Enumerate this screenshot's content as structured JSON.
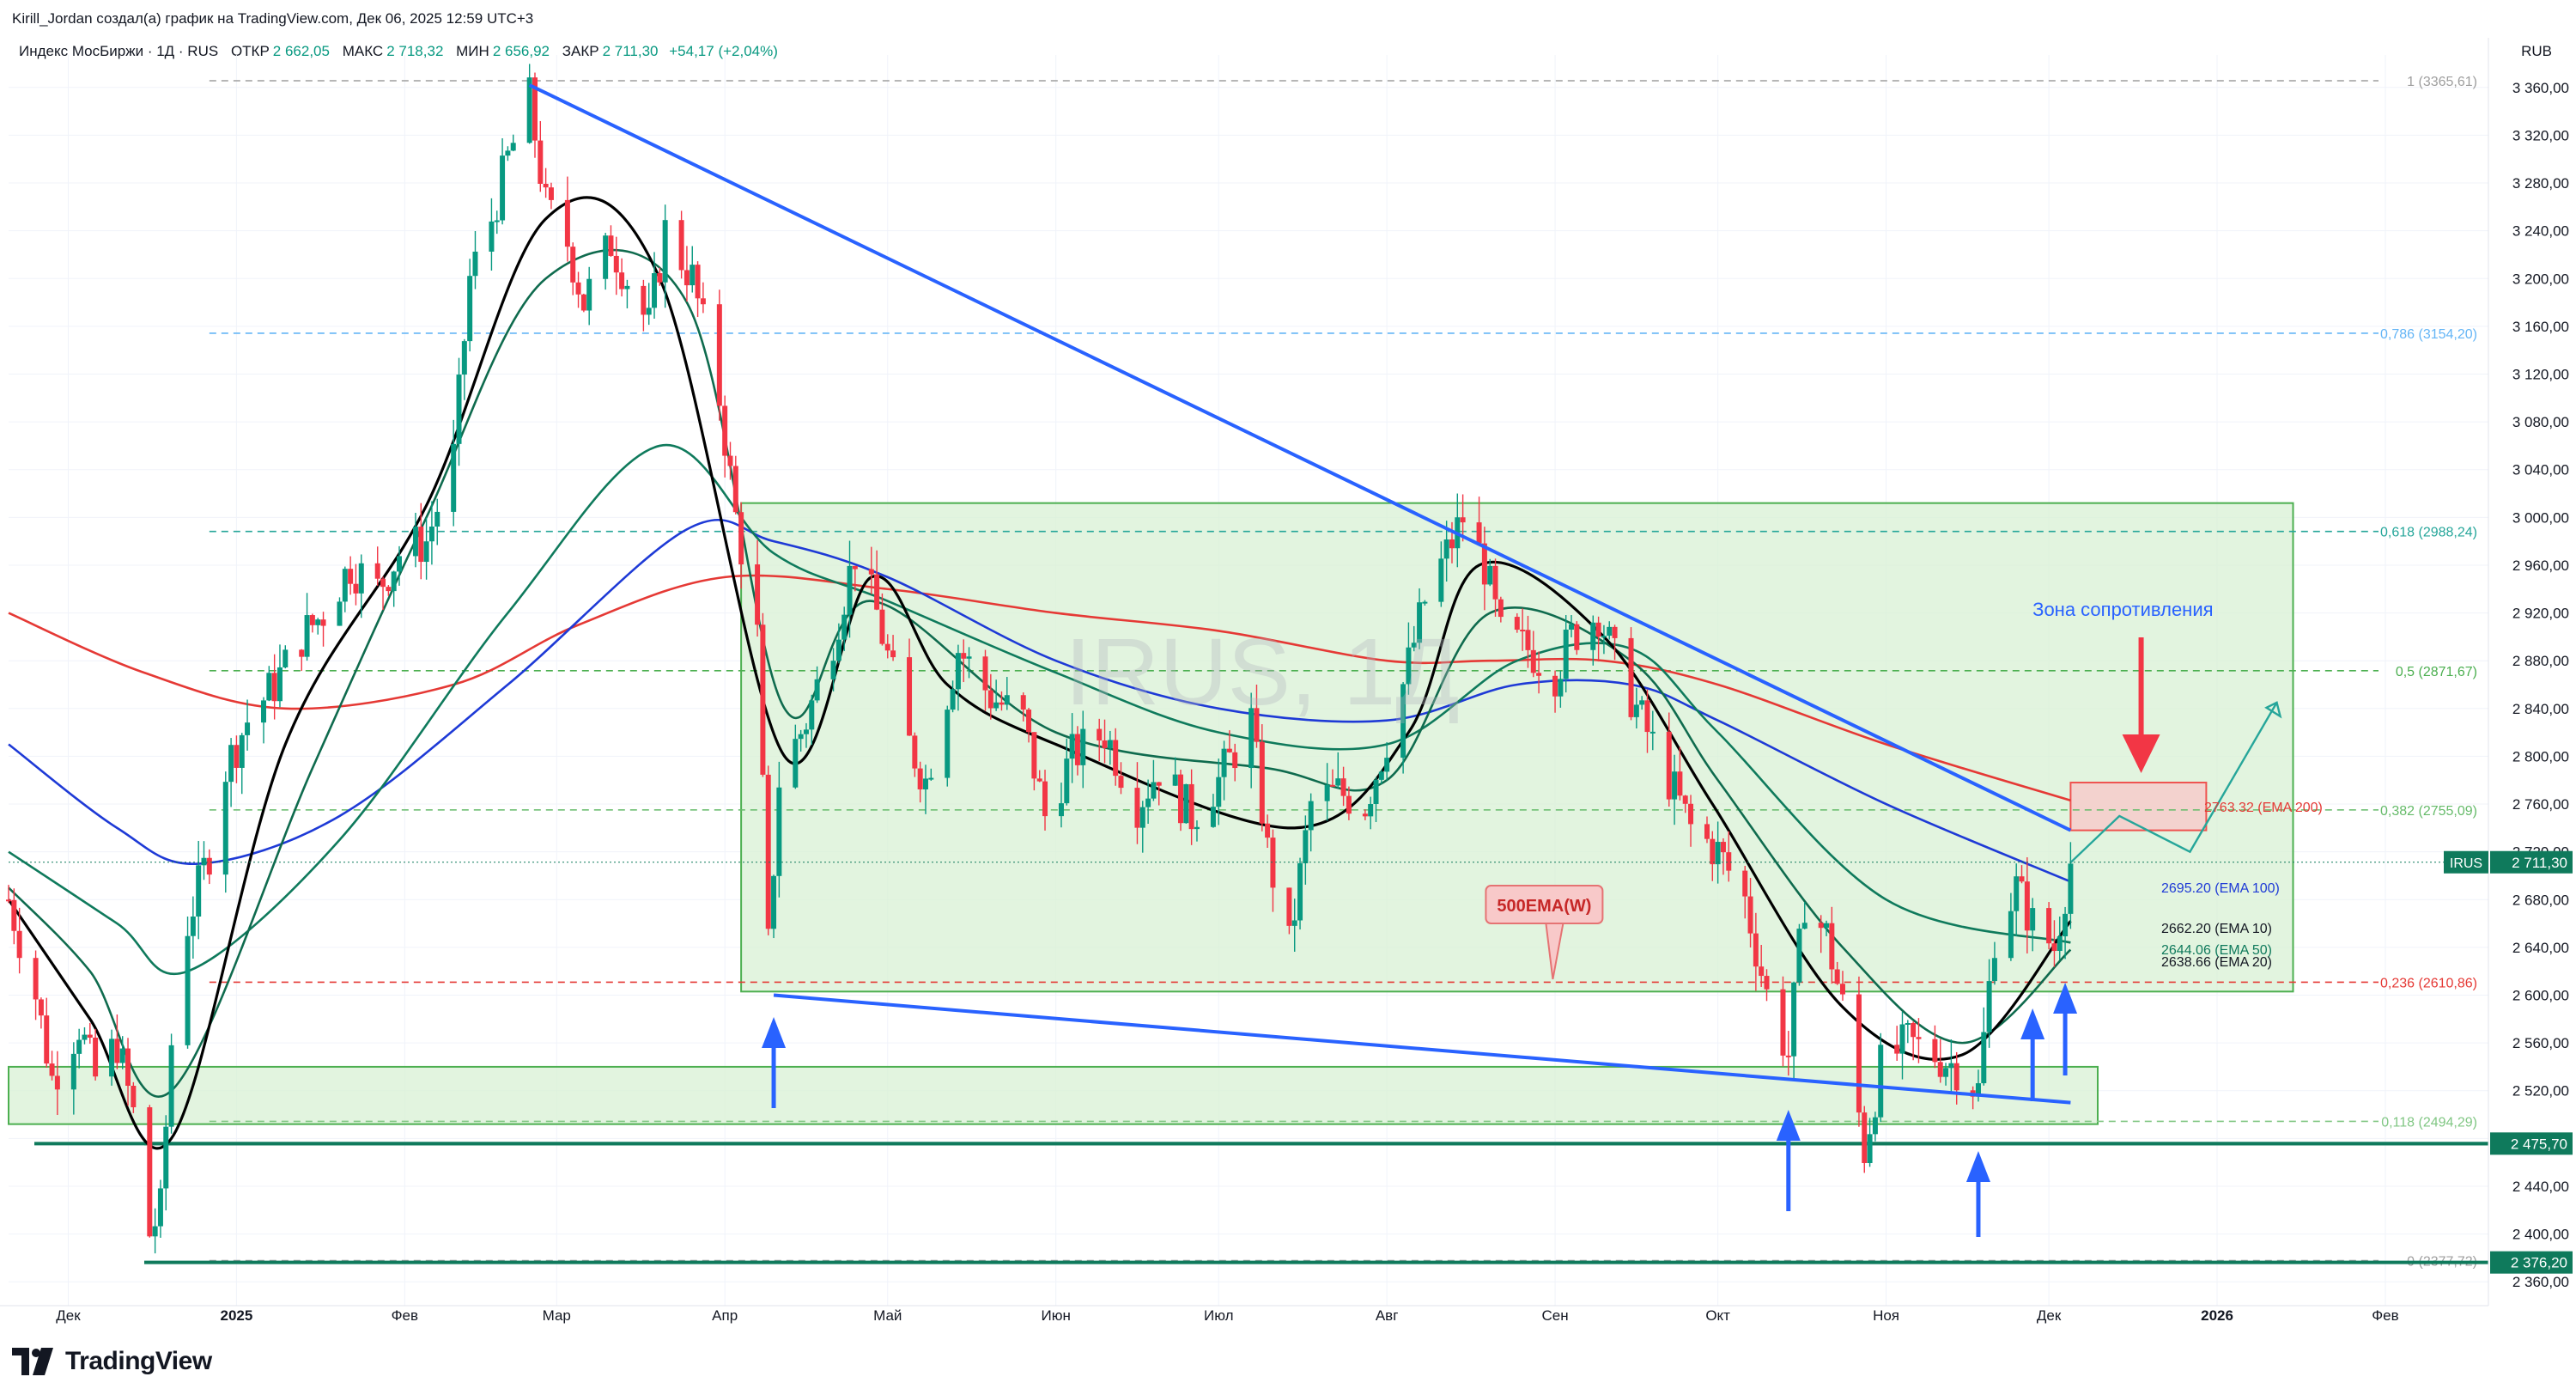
{
  "header": {
    "author_line": "Kirill_Jordan создал(а) график на TradingView.com, Дек 06, 2025 12:59 UTC+3",
    "symbol": "Индекс МосБиржи · 1Д · RUS",
    "open_label": "ОТКР",
    "open": "2 662,05",
    "high_label": "МАКС",
    "high": "2 718,32",
    "low_label": "МИН",
    "low": "2 656,92",
    "close_label": "ЗАКР",
    "close": "2 711,30",
    "change": "+54,17 (+2,04%)",
    "currency": "RUB"
  },
  "watermark": "IRUS, 1Д",
  "brand": "TradingView",
  "colors": {
    "up": "#089981",
    "down": "#f23645",
    "ema200": "#e53935",
    "ema100": "#1e3ad6",
    "ema50": "#0f7a5c",
    "ema20": "#0f6b4e",
    "ema10": "#000000",
    "trendline": "#2962ff",
    "zone_fill": "#d8f0d4",
    "zone_border": "#4caf50"
  },
  "chart_data": {
    "type": "candlestick",
    "symbol": "IRUS",
    "timeframe": "1Д",
    "y_range": [
      2340,
      3380
    ],
    "x_range": [
      "2024-11-20",
      "2026-02-20"
    ],
    "y_ticks": [
      "3 360,00",
      "3 320,00",
      "3 280,00",
      "3 240,00",
      "3 200,00",
      "3 160,00",
      "3 120,00",
      "3 080,00",
      "3 040,00",
      "3 000,00",
      "2 960,00",
      "2 920,00",
      "2 880,00",
      "2 840,00",
      "2 800,00",
      "2 760,00",
      "2 720,00",
      "2 680,00",
      "2 640,00",
      "2 600,00",
      "2 560,00",
      "2 520,00",
      "2 480,00",
      "2 440,00",
      "2 400,00",
      "2 360,00"
    ],
    "x_ticks": [
      {
        "date": "2024-12-01",
        "label": "Дек"
      },
      {
        "date": "2025-01-01",
        "label": "2025"
      },
      {
        "date": "2025-02-01",
        "label": "Фев"
      },
      {
        "date": "2025-03-01",
        "label": "Мар"
      },
      {
        "date": "2025-04-01",
        "label": "Апр"
      },
      {
        "date": "2025-05-01",
        "label": "Май"
      },
      {
        "date": "2025-06-01",
        "label": "Июн"
      },
      {
        "date": "2025-07-01",
        "label": "Июл"
      },
      {
        "date": "2025-08-01",
        "label": "Авг"
      },
      {
        "date": "2025-09-01",
        "label": "Сен"
      },
      {
        "date": "2025-10-01",
        "label": "Окт"
      },
      {
        "date": "2025-11-01",
        "label": "Ноя"
      },
      {
        "date": "2025-12-01",
        "label": "Дек"
      },
      {
        "date": "2026-01-01",
        "label": "2026"
      },
      {
        "date": "2026-02-01",
        "label": "Фев"
      }
    ],
    "price_path": [
      [
        "2024-11-20",
        2680
      ],
      [
        "2024-11-25",
        2600
      ],
      [
        "2024-11-28",
        2530
      ],
      [
        "2024-12-03",
        2575
      ],
      [
        "2024-12-06",
        2530
      ],
      [
        "2024-12-10",
        2560
      ],
      [
        "2024-12-13",
        2500
      ],
      [
        "2024-12-16",
        2400
      ],
      [
        "2024-12-18",
        2420
      ],
      [
        "2024-12-20",
        2560
      ],
      [
        "2024-12-23",
        2660
      ],
      [
        "2024-12-27",
        2720
      ],
      [
        "2024-12-30",
        2790
      ],
      [
        "2025-01-03",
        2830
      ],
      [
        "2025-01-08",
        2860
      ],
      [
        "2025-01-13",
        2900
      ],
      [
        "2025-01-17",
        2920
      ],
      [
        "2025-01-22",
        2960
      ],
      [
        "2025-01-27",
        2940
      ],
      [
        "2025-01-31",
        2970
      ],
      [
        "2025-02-05",
        2980
      ],
      [
        "2025-02-10",
        3050
      ],
      [
        "2025-02-13",
        3200
      ],
      [
        "2025-02-17",
        3250
      ],
      [
        "2025-02-20",
        3300
      ],
      [
        "2025-02-24",
        3350
      ],
      [
        "2025-02-27",
        3260
      ],
      [
        "2025-03-03",
        3230
      ],
      [
        "2025-03-06",
        3180
      ],
      [
        "2025-03-11",
        3230
      ],
      [
        "2025-03-14",
        3200
      ],
      [
        "2025-03-18",
        3160
      ],
      [
        "2025-03-21",
        3240
      ],
      [
        "2025-03-26",
        3200
      ],
      [
        "2025-03-31",
        3100
      ],
      [
        "2025-04-03",
        3000
      ],
      [
        "2025-04-07",
        2900
      ],
      [
        "2025-04-09",
        2640
      ],
      [
        "2025-04-11",
        2780
      ],
      [
        "2025-04-16",
        2830
      ],
      [
        "2025-04-21",
        2900
      ],
      [
        "2025-04-25",
        2970
      ],
      [
        "2025-04-29",
        2920
      ],
      [
        "2025-05-05",
        2810
      ],
      [
        "2025-05-08",
        2780
      ],
      [
        "2025-05-14",
        2890
      ],
      [
        "2025-05-20",
        2850
      ],
      [
        "2025-05-26",
        2830
      ],
      [
        "2025-05-30",
        2750
      ],
      [
        "2025-06-04",
        2800
      ],
      [
        "2025-06-10",
        2820
      ],
      [
        "2025-06-16",
        2760
      ],
      [
        "2025-06-20",
        2790
      ],
      [
        "2025-06-26",
        2750
      ],
      [
        "2025-07-01",
        2780
      ],
      [
        "2025-07-07",
        2830
      ],
      [
        "2025-07-10",
        2720
      ],
      [
        "2025-07-14",
        2640
      ],
      [
        "2025-07-18",
        2760
      ],
      [
        "2025-07-23",
        2770
      ],
      [
        "2025-07-28",
        2760
      ],
      [
        "2025-07-31",
        2800
      ],
      [
        "2025-08-04",
        2860
      ],
      [
        "2025-08-08",
        2930
      ],
      [
        "2025-08-12",
        2970
      ],
      [
        "2025-08-15",
        3000
      ],
      [
        "2025-08-19",
        2960
      ],
      [
        "2025-08-22",
        2900
      ],
      [
        "2025-08-27",
        2890
      ],
      [
        "2025-09-01",
        2870
      ],
      [
        "2025-09-04",
        2900
      ],
      [
        "2025-09-09",
        2920
      ],
      [
        "2025-09-12",
        2880
      ],
      [
        "2025-09-17",
        2830
      ],
      [
        "2025-09-22",
        2780
      ],
      [
        "2025-09-26",
        2740
      ],
      [
        "2025-10-01",
        2720
      ],
      [
        "2025-10-06",
        2680
      ],
      [
        "2025-10-10",
        2600
      ],
      [
        "2025-10-14",
        2550
      ],
      [
        "2025-10-17",
        2680
      ],
      [
        "2025-10-21",
        2650
      ],
      [
        "2025-10-24",
        2590
      ],
      [
        "2025-10-28",
        2470
      ],
      [
        "2025-10-31",
        2540
      ],
      [
        "2025-11-05",
        2560
      ],
      [
        "2025-11-10",
        2550
      ],
      [
        "2025-11-14",
        2540
      ],
      [
        "2025-11-18",
        2520
      ],
      [
        "2025-11-21",
        2650
      ],
      [
        "2025-11-25",
        2690
      ],
      [
        "2025-11-28",
        2660
      ],
      [
        "2025-12-02",
        2640
      ],
      [
        "2025-12-05",
        2711
      ]
    ],
    "series": [
      {
        "name": "EMA 200",
        "points": [
          [
            "2024-11-20",
            2920
          ],
          [
            "2024-12-15",
            2870
          ],
          [
            "2025-01-10",
            2840
          ],
          [
            "2025-02-10",
            2860
          ],
          [
            "2025-03-05",
            2910
          ],
          [
            "2025-04-01",
            2950
          ],
          [
            "2025-05-01",
            2940
          ],
          [
            "2025-06-01",
            2920
          ],
          [
            "2025-07-01",
            2905
          ],
          [
            "2025-08-01",
            2880
          ],
          [
            "2025-08-20",
            2880
          ],
          [
            "2025-09-10",
            2880
          ],
          [
            "2025-10-01",
            2860
          ],
          [
            "2025-11-01",
            2810
          ],
          [
            "2025-12-05",
            2763
          ]
        ]
      },
      {
        "name": "EMA 100",
        "points": [
          [
            "2024-11-20",
            2810
          ],
          [
            "2024-12-10",
            2740
          ],
          [
            "2024-12-25",
            2710
          ],
          [
            "2025-01-20",
            2750
          ],
          [
            "2025-02-20",
            2860
          ],
          [
            "2025-03-25",
            2990
          ],
          [
            "2025-04-10",
            2980
          ],
          [
            "2025-05-01",
            2950
          ],
          [
            "2025-06-01",
            2880
          ],
          [
            "2025-07-01",
            2840
          ],
          [
            "2025-08-01",
            2830
          ],
          [
            "2025-08-25",
            2860
          ],
          [
            "2025-09-15",
            2860
          ],
          [
            "2025-10-01",
            2830
          ],
          [
            "2025-11-01",
            2760
          ],
          [
            "2025-12-05",
            2695
          ]
        ]
      },
      {
        "name": "EMA 50",
        "points": [
          [
            "2024-11-20",
            2720
          ],
          [
            "2024-12-10",
            2660
          ],
          [
            "2024-12-23",
            2620
          ],
          [
            "2025-01-20",
            2730
          ],
          [
            "2025-02-20",
            2920
          ],
          [
            "2025-03-20",
            3060
          ],
          [
            "2025-04-10",
            2970
          ],
          [
            "2025-05-01",
            2930
          ],
          [
            "2025-06-01",
            2870
          ],
          [
            "2025-07-01",
            2820
          ],
          [
            "2025-08-01",
            2810
          ],
          [
            "2025-08-25",
            2880
          ],
          [
            "2025-09-15",
            2890
          ],
          [
            "2025-10-01",
            2820
          ],
          [
            "2025-11-01",
            2680
          ],
          [
            "2025-12-05",
            2644
          ]
        ]
      },
      {
        "name": "EMA 20",
        "points": [
          [
            "2024-11-20",
            2690
          ],
          [
            "2024-12-05",
            2620
          ],
          [
            "2024-12-20",
            2520
          ],
          [
            "2025-01-15",
            2790
          ],
          [
            "2025-02-05",
            3000
          ],
          [
            "2025-02-27",
            3200
          ],
          [
            "2025-03-25",
            3180
          ],
          [
            "2025-04-12",
            2840
          ],
          [
            "2025-04-28",
            2930
          ],
          [
            "2025-06-01",
            2820
          ],
          [
            "2025-07-10",
            2790
          ],
          [
            "2025-08-01",
            2780
          ],
          [
            "2025-08-20",
            2920
          ],
          [
            "2025-09-15",
            2880
          ],
          [
            "2025-10-01",
            2780
          ],
          [
            "2025-10-24",
            2640
          ],
          [
            "2025-11-15",
            2560
          ],
          [
            "2025-12-05",
            2638
          ]
        ]
      },
      {
        "name": "EMA 10",
        "points": [
          [
            "2024-11-20",
            2680
          ],
          [
            "2024-12-05",
            2580
          ],
          [
            "2024-12-20",
            2480
          ],
          [
            "2025-01-10",
            2810
          ],
          [
            "2025-02-05",
            3010
          ],
          [
            "2025-02-27",
            3250
          ],
          [
            "2025-03-20",
            3200
          ],
          [
            "2025-04-12",
            2800
          ],
          [
            "2025-04-28",
            2950
          ],
          [
            "2025-05-12",
            2860
          ],
          [
            "2025-06-01",
            2810
          ],
          [
            "2025-07-15",
            2740
          ],
          [
            "2025-08-05",
            2820
          ],
          [
            "2025-08-18",
            2960
          ],
          [
            "2025-09-10",
            2900
          ],
          [
            "2025-09-30",
            2760
          ],
          [
            "2025-10-24",
            2590
          ],
          [
            "2025-11-15",
            2550
          ],
          [
            "2025-12-05",
            2662
          ]
        ]
      }
    ],
    "ema_labels": [
      {
        "text": "2763.32 (EMA 200)",
        "color": "#e53935"
      },
      {
        "text": "2695.20 (EMA 100)",
        "color": "#1e3ad6"
      },
      {
        "text": "2662.20 (EMA 10)",
        "color": "#131722"
      },
      {
        "text": "2644.06 (EMA 50)",
        "color": "#0f7a5c"
      },
      {
        "text": "2638.66 (EMA 20)",
        "color": "#131722"
      }
    ],
    "fib_levels": [
      {
        "label": "1 (3365,61)",
        "price": 3365.61,
        "color": "#9e9e9e"
      },
      {
        "label": "0,786 (3154,20)",
        "price": 3154.2,
        "color": "#64b5f6"
      },
      {
        "label": "0,618 (2988,24)",
        "price": 2988.24,
        "color": "#26a69a"
      },
      {
        "label": "0,5 (2871,67)",
        "price": 2871.67,
        "color": "#4caf50"
      },
      {
        "label": "0,382 (2755,09)",
        "price": 2755.09,
        "color": "#66bb6a"
      },
      {
        "label": "0,236 (2610,86)",
        "price": 2610.86,
        "color": "#e53935"
      },
      {
        "label": "0,118 (2494,29)",
        "price": 2494.29,
        "color": "#81c784"
      },
      {
        "label": "0 (2377,72)",
        "price": 2377.72,
        "color": "#9e9e9e"
      }
    ],
    "horizontal_levels": [
      {
        "price": 2475.7,
        "label": "2 475,70"
      },
      {
        "price": 2376.2,
        "label": "2 376,20"
      }
    ],
    "last_price": {
      "symbol": "IRUS",
      "label": "2 711,30",
      "price": 2711.3
    },
    "annotations": {
      "resistance_zone_text": "Зона сопротивления",
      "ema500_callout": "500EMA(W)"
    }
  }
}
